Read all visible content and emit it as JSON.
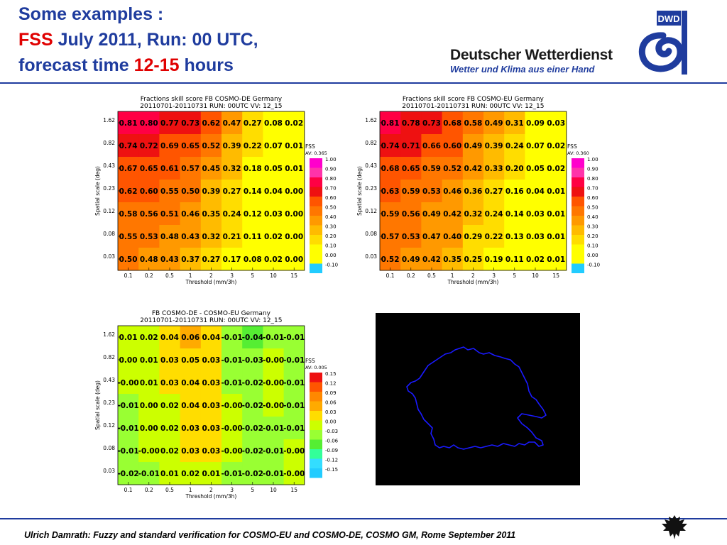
{
  "header": {
    "title_line1": "Some examples :",
    "title_fss": "FSS",
    "title_line2_rest": " July 2011, Run: 00 UTC,",
    "title_line3_a": "forecast time ",
    "title_line3_hours": "12-15",
    "title_line3_b": " hours"
  },
  "logo": {
    "name": "Deutscher Wetterdienst",
    "slogan": "Wetter und Klima aus einer Hand",
    "badge": "DWD"
  },
  "footer": {
    "text": "Ulrich Damrath: Fuzzy and standard verification for COSMO-EU and COSMO-DE, COSMO GM, Rome September 2011"
  },
  "colors": {
    "title_blue": "#1f3c9e",
    "title_red": "#e00000",
    "map_background": "#000000",
    "map_outline": "#1a1aff"
  },
  "chart_data": [
    {
      "type": "heatmap",
      "title": "Fractions skill score FB COSMO-DE Germany",
      "subtitle": "20110701-20110731 RUN: 00UTC VV: 12_15",
      "xlabel": "Threshold (mm/3h)",
      "ylabel": "Spatial scale (deg)",
      "x_ticks": [
        "0.1",
        "0.2",
        "0.5",
        "1",
        "2",
        "3",
        "5",
        "10",
        "15"
      ],
      "y_ticks": [
        "1.62",
        "0.82",
        "0.43",
        "0.23",
        "0.12",
        "0.08",
        "0.03"
      ],
      "values": [
        [
          0.81,
          0.8,
          0.77,
          0.73,
          0.62,
          0.47,
          0.27,
          0.08,
          0.02
        ],
        [
          0.74,
          0.72,
          0.69,
          0.65,
          0.52,
          0.39,
          0.22,
          0.07,
          0.01
        ],
        [
          0.67,
          0.65,
          0.61,
          0.57,
          0.45,
          0.32,
          0.18,
          0.05,
          0.01
        ],
        [
          0.62,
          0.6,
          0.55,
          0.5,
          0.39,
          0.27,
          0.14,
          0.04,
          0.0
        ],
        [
          0.58,
          0.56,
          0.51,
          0.46,
          0.35,
          0.24,
          0.12,
          0.03,
          0.0
        ],
        [
          0.55,
          0.53,
          0.48,
          0.43,
          0.32,
          0.21,
          0.11,
          0.02,
          0.0
        ],
        [
          0.5,
          0.48,
          0.43,
          0.37,
          0.27,
          0.17,
          0.08,
          0.02,
          0.0
        ]
      ],
      "legend": {
        "title": "FSS",
        "average_label": "AV: 0.365",
        "bins": [
          {
            "label": "1.00",
            "color": "#ff00cc"
          },
          {
            "label": "0.90",
            "color": "#ff33aa"
          },
          {
            "label": "0.80",
            "color": "#ff0044"
          },
          {
            "label": "0.70",
            "color": "#ee1111"
          },
          {
            "label": "0.60",
            "color": "#ff5500"
          },
          {
            "label": "0.50",
            "color": "#ff7700"
          },
          {
            "label": "0.40",
            "color": "#ff9900"
          },
          {
            "label": "0.30",
            "color": "#ffbb00"
          },
          {
            "label": "0.20",
            "color": "#ffdd00"
          },
          {
            "label": "0.10",
            "color": "#ffff00"
          },
          {
            "label": "0.00",
            "color": "#ffff00"
          },
          {
            "label": "-0.10",
            "color": "#22ccff"
          }
        ]
      }
    },
    {
      "type": "heatmap",
      "title": "Fractions skill score FB COSMO-EU Germany",
      "subtitle": "20110701-20110731 RUN: 00UTC VV: 12_15",
      "xlabel": "Threshold (mm/3h)",
      "ylabel": "Spatial scale (deg)",
      "x_ticks": [
        "0.1",
        "0.2",
        "0.5",
        "1",
        "2",
        "3",
        "5",
        "10",
        "15"
      ],
      "y_ticks": [
        "1.62",
        "0.82",
        "0.43",
        "0.23",
        "0.12",
        "0.08",
        "0.03"
      ],
      "values": [
        [
          0.81,
          0.78,
          0.73,
          0.68,
          0.58,
          0.49,
          0.31,
          0.09,
          0.03
        ],
        [
          0.74,
          0.71,
          0.66,
          0.6,
          0.49,
          0.39,
          0.24,
          0.07,
          0.02
        ],
        [
          0.68,
          0.65,
          0.59,
          0.52,
          0.42,
          0.33,
          0.2,
          0.05,
          0.02
        ],
        [
          0.63,
          0.59,
          0.53,
          0.46,
          0.36,
          0.27,
          0.16,
          0.04,
          0.01
        ],
        [
          0.59,
          0.56,
          0.49,
          0.42,
          0.32,
          0.24,
          0.14,
          0.03,
          0.01
        ],
        [
          0.57,
          0.53,
          0.47,
          0.4,
          0.29,
          0.22,
          0.13,
          0.03,
          0.01
        ],
        [
          0.52,
          0.49,
          0.42,
          0.35,
          0.25,
          0.19,
          0.11,
          0.02,
          0.01
        ]
      ],
      "legend": {
        "title": "FSS",
        "average_label": "AV: 0.360",
        "bins": [
          {
            "label": "1.00",
            "color": "#ff00cc"
          },
          {
            "label": "0.90",
            "color": "#ff33aa"
          },
          {
            "label": "0.80",
            "color": "#ff0044"
          },
          {
            "label": "0.70",
            "color": "#ee1111"
          },
          {
            "label": "0.60",
            "color": "#ff5500"
          },
          {
            "label": "0.50",
            "color": "#ff7700"
          },
          {
            "label": "0.40",
            "color": "#ff9900"
          },
          {
            "label": "0.30",
            "color": "#ffbb00"
          },
          {
            "label": "0.20",
            "color": "#ffdd00"
          },
          {
            "label": "0.10",
            "color": "#ffff00"
          },
          {
            "label": "0.00",
            "color": "#ffff00"
          },
          {
            "label": "-0.10",
            "color": "#22ccff"
          }
        ]
      }
    },
    {
      "type": "heatmap",
      "title": "FB COSMO-DE - COSMO-EU Germany",
      "subtitle": "20110701-20110731 RUN: 00UTC VV: 12_15",
      "xlabel": "Threshold (mm/3h)",
      "ylabel": "Spatial scale (deg)",
      "x_ticks": [
        "0.1",
        "0.2",
        "0.5",
        "1",
        "2",
        "3",
        "5",
        "10",
        "15"
      ],
      "y_ticks": [
        "1.62",
        "0.82",
        "0.43",
        "0.23",
        "0.12",
        "0.08",
        "0.03"
      ],
      "values": [
        [
          0.01,
          0.02,
          0.04,
          0.06,
          0.04,
          -0.01,
          -0.04,
          -0.01,
          -0.01
        ],
        [
          0.0,
          0.01,
          0.03,
          0.05,
          0.03,
          -0.01,
          -0.03,
          -0.0,
          -0.01
        ],
        [
          -0.0,
          0.01,
          0.03,
          0.04,
          0.03,
          -0.01,
          -0.02,
          -0.0,
          -0.01
        ],
        [
          -0.01,
          0.0,
          0.02,
          0.04,
          0.03,
          -0.0,
          -0.02,
          -0.0,
          -0.01
        ],
        [
          -0.01,
          0.0,
          0.02,
          0.03,
          0.03,
          -0.0,
          -0.02,
          -0.01,
          -0.01
        ],
        [
          -0.01,
          -0.0,
          0.02,
          0.03,
          0.03,
          -0.0,
          -0.02,
          -0.01,
          -0.0
        ],
        [
          -0.02,
          -0.01,
          0.01,
          0.02,
          0.01,
          -0.01,
          -0.02,
          -0.01,
          -0.0
        ]
      ],
      "legend": {
        "title": "FSS",
        "average_label": "AV: 0.005",
        "bins": [
          {
            "label": "0.15",
            "color": "#ee1111"
          },
          {
            "label": "0.12",
            "color": "#ff5500"
          },
          {
            "label": "0.09",
            "color": "#ff8800"
          },
          {
            "label": "0.06",
            "color": "#ffaa00"
          },
          {
            "label": "0.03",
            "color": "#ffdd00"
          },
          {
            "label": "0.00",
            "color": "#ccff00"
          },
          {
            "label": "-0.03",
            "color": "#99ff33"
          },
          {
            "label": "-0.06",
            "color": "#55ee33"
          },
          {
            "label": "-0.09",
            "color": "#33ff99"
          },
          {
            "label": "-0.12",
            "color": "#33ddff"
          },
          {
            "label": "-0.15",
            "color": "#22ccff"
          }
        ]
      }
    }
  ]
}
